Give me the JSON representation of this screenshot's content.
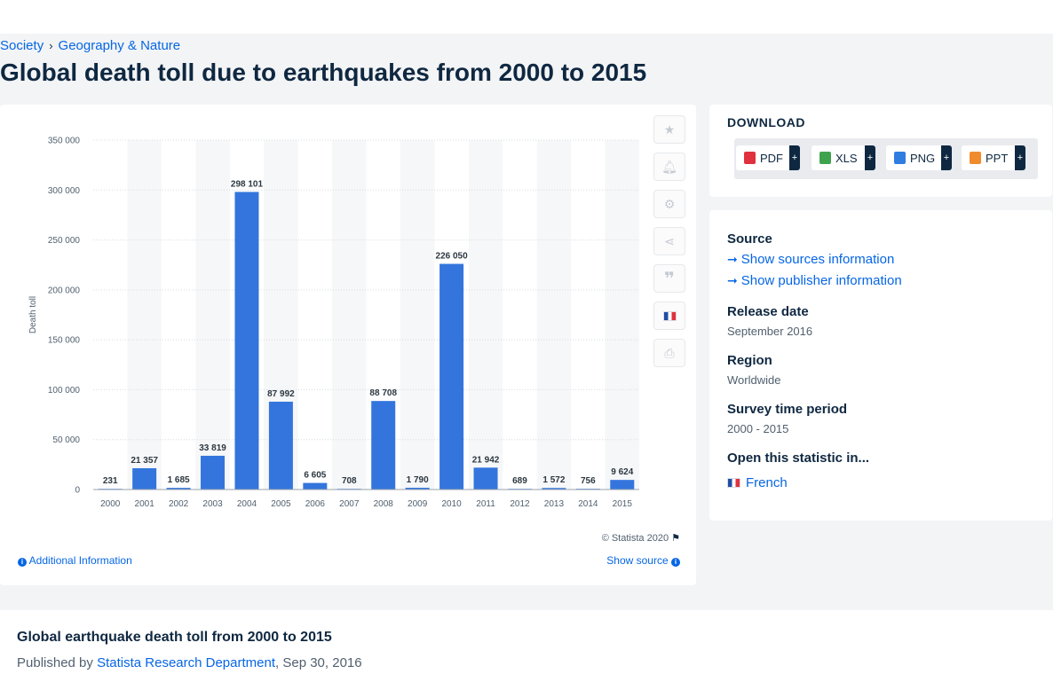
{
  "breadcrumb": {
    "items": [
      "Society",
      "Geography & Nature"
    ]
  },
  "page": {
    "title": "Global death toll due to earthquakes from 2000 to 2015"
  },
  "chart_data": {
    "type": "bar",
    "title": "",
    "ylabel": "Death toll",
    "xlabel": "",
    "categories": [
      "2000",
      "2001",
      "2002",
      "2003",
      "2004",
      "2005",
      "2006",
      "2007",
      "2008",
      "2009",
      "2010",
      "2011",
      "2012",
      "2013",
      "2014",
      "2015"
    ],
    "values": [
      231,
      21357,
      1685,
      33819,
      298101,
      87992,
      6605,
      708,
      88708,
      1790,
      226050,
      21942,
      689,
      1572,
      756,
      9624
    ],
    "value_labels": [
      "231",
      "21 357",
      "1 685",
      "33 819",
      "298 101",
      "87 992",
      "6 605",
      "708",
      "88 708",
      "1 790",
      "226 050",
      "21 942",
      "689",
      "1 572",
      "756",
      "9 624"
    ],
    "ylim": [
      0,
      350000
    ],
    "yticks": [
      0,
      50000,
      100000,
      150000,
      200000,
      250000,
      300000,
      350000
    ],
    "ytick_labels": [
      "0",
      "50 000",
      "100 000",
      "150 000",
      "200 000",
      "250 000",
      "300 000",
      "350 000"
    ],
    "grid": true,
    "bar_color": "#3375dd"
  },
  "chart_footer": {
    "copyright": "© Statista 2020",
    "additional_info": "Additional Information",
    "show_source": "Show source"
  },
  "download": {
    "title": "DOWNLOAD",
    "buttons": [
      {
        "label": "PDF",
        "color": "#e0313e"
      },
      {
        "label": "XLS",
        "color": "#3fa34d"
      },
      {
        "label": "PNG",
        "color": "#2f7de1"
      },
      {
        "label": "PPT",
        "color": "#f08c2e"
      }
    ],
    "plus": "+"
  },
  "meta": {
    "source_heading": "Source",
    "show_sources": "Show sources information",
    "show_publisher": "Show publisher information",
    "release_heading": "Release date",
    "release_value": "September 2016",
    "region_heading": "Region",
    "region_value": "Worldwide",
    "period_heading": "Survey time period",
    "period_value": "2000 - 2015",
    "open_heading": "Open this statistic in...",
    "open_value": "French"
  },
  "bottom": {
    "title": "Global earthquake death toll from 2000 to 2015",
    "published_by": "Published by",
    "department": "Statista Research Department",
    "date": ", Sep 30, 2016"
  },
  "icons": [
    "star-icon",
    "bell-icon",
    "gear-icon",
    "share-icon",
    "quote-icon",
    "french-flag-icon",
    "print-icon"
  ]
}
